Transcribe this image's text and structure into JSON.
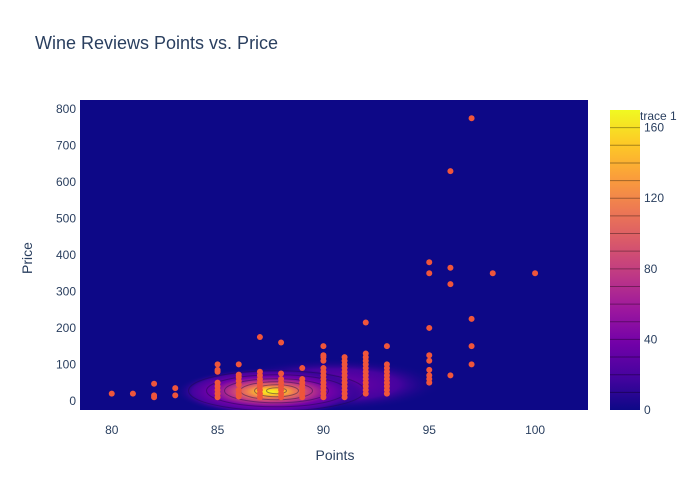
{
  "chart_data": {
    "type": "scatter",
    "title": "Wine Reviews Points vs. Price",
    "xlabel": "Points",
    "ylabel": "Price",
    "xlim": [
      78.5,
      102.5
    ],
    "ylim": [
      -25,
      825
    ],
    "x_ticks": [
      80,
      85,
      90,
      95,
      100
    ],
    "y_ticks": [
      0,
      100,
      200,
      300,
      400,
      500,
      600,
      700,
      800
    ],
    "background": "density contour heatmap (plasma colorscale) under the points",
    "colors": {
      "plot_bg": "#0d0887",
      "marker": "#ef553b"
    },
    "colorbar": {
      "title": "trace 1",
      "range": [
        0,
        170
      ],
      "ticks": [
        0,
        40,
        80,
        120,
        160
      ],
      "colorscale": [
        "#0d0887",
        "#46039f",
        "#7201a8",
        "#9c179e",
        "#bd3786",
        "#d8576b",
        "#ed7953",
        "#fb9f3a",
        "#fdca26",
        "#f0f921"
      ]
    },
    "density_peak": {
      "x": 87.5,
      "y": 25
    },
    "points": [
      [
        80,
        20
      ],
      [
        81,
        20
      ],
      [
        82,
        10
      ],
      [
        82,
        15
      ],
      [
        82,
        47
      ],
      [
        83,
        15
      ],
      [
        83,
        35
      ],
      [
        85,
        10
      ],
      [
        85,
        20
      ],
      [
        85,
        30
      ],
      [
        85,
        40
      ],
      [
        85,
        50
      ],
      [
        85,
        80
      ],
      [
        85,
        85
      ],
      [
        85,
        100
      ],
      [
        86,
        12
      ],
      [
        86,
        20
      ],
      [
        86,
        30
      ],
      [
        86,
        45
      ],
      [
        86,
        55
      ],
      [
        86,
        65
      ],
      [
        86,
        72
      ],
      [
        86,
        100
      ],
      [
        87,
        10
      ],
      [
        87,
        20
      ],
      [
        87,
        30
      ],
      [
        87,
        40
      ],
      [
        87,
        50
      ],
      [
        87,
        60
      ],
      [
        87,
        70
      ],
      [
        87,
        80
      ],
      [
        87,
        175
      ],
      [
        88,
        10
      ],
      [
        88,
        20
      ],
      [
        88,
        30
      ],
      [
        88,
        40
      ],
      [
        88,
        50
      ],
      [
        88,
        60
      ],
      [
        88,
        75
      ],
      [
        88,
        160
      ],
      [
        89,
        10
      ],
      [
        89,
        20
      ],
      [
        89,
        30
      ],
      [
        89,
        40
      ],
      [
        89,
        50
      ],
      [
        89,
        60
      ],
      [
        89,
        90
      ],
      [
        90,
        10
      ],
      [
        90,
        20
      ],
      [
        90,
        30
      ],
      [
        90,
        40
      ],
      [
        90,
        50
      ],
      [
        90,
        60
      ],
      [
        90,
        70
      ],
      [
        90,
        80
      ],
      [
        90,
        90
      ],
      [
        90,
        110
      ],
      [
        90,
        120
      ],
      [
        90,
        125
      ],
      [
        90,
        150
      ],
      [
        91,
        10
      ],
      [
        91,
        20
      ],
      [
        91,
        30
      ],
      [
        91,
        40
      ],
      [
        91,
        50
      ],
      [
        91,
        60
      ],
      [
        91,
        70
      ],
      [
        91,
        80
      ],
      [
        91,
        90
      ],
      [
        91,
        100
      ],
      [
        91,
        110
      ],
      [
        91,
        120
      ],
      [
        92,
        20
      ],
      [
        92,
        30
      ],
      [
        92,
        40
      ],
      [
        92,
        50
      ],
      [
        92,
        60
      ],
      [
        92,
        70
      ],
      [
        92,
        80
      ],
      [
        92,
        90
      ],
      [
        92,
        100
      ],
      [
        92,
        110
      ],
      [
        92,
        120
      ],
      [
        92,
        130
      ],
      [
        92,
        215
      ],
      [
        93,
        20
      ],
      [
        93,
        30
      ],
      [
        93,
        40
      ],
      [
        93,
        50
      ],
      [
        93,
        60
      ],
      [
        93,
        70
      ],
      [
        93,
        80
      ],
      [
        93,
        90
      ],
      [
        93,
        100
      ],
      [
        93,
        150
      ],
      [
        95,
        50
      ],
      [
        95,
        60
      ],
      [
        95,
        70
      ],
      [
        95,
        85
      ],
      [
        95,
        110
      ],
      [
        95,
        125
      ],
      [
        95,
        200
      ],
      [
        95,
        350
      ],
      [
        95,
        380
      ],
      [
        96,
        70
      ],
      [
        96,
        320
      ],
      [
        96,
        365
      ],
      [
        96,
        630
      ],
      [
        97,
        100
      ],
      [
        97,
        150
      ],
      [
        97,
        225
      ],
      [
        97,
        775
      ],
      [
        98,
        350
      ],
      [
        100,
        350
      ]
    ]
  }
}
